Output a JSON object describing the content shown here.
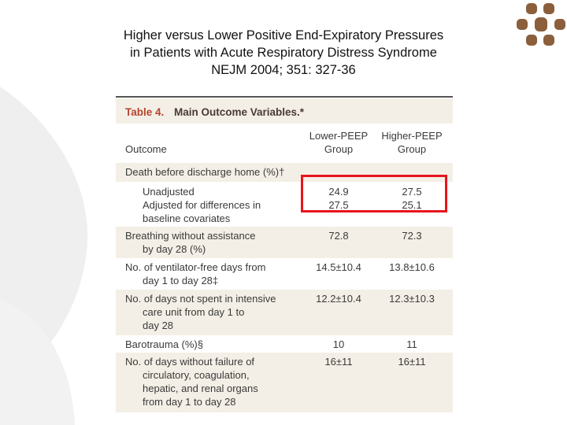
{
  "header": {
    "title_lines": [
      "Higher versus Lower Positive End-Expiratory Pressures",
      "in Patients with Acute Respiratory Distress Syndrome",
      "NEJM 2004; 351: 327-36"
    ]
  },
  "table": {
    "caption_label": "Table 4.",
    "caption_text": "Main Outcome Variables.*",
    "columns": [
      "Outcome",
      [
        "Lower-PEEP",
        "Group"
      ],
      [
        "Higher-PEEP",
        "Group"
      ]
    ],
    "rows": [
      {
        "outcome": [
          "Death before discharge home (%)†"
        ]
      },
      {
        "outcome": [
          "Unadjusted"
        ],
        "lower": "24.9",
        "higher": "27.5"
      },
      {
        "outcome": [
          "Adjusted for differences in",
          "baseline covariates"
        ],
        "lower": "27.5",
        "higher": "25.1"
      },
      {
        "outcome": [
          "Breathing without assistance",
          "by day 28 (%)"
        ],
        "lower": "72.8",
        "higher": "72.3"
      },
      {
        "outcome": [
          "No. of ventilator-free days from",
          "day 1 to day 28‡"
        ],
        "lower": "14.5±10.4",
        "higher": "13.8±10.6"
      },
      {
        "outcome": [
          "No. of days not spent in intensive",
          "care unit from day 1 to",
          "day 28"
        ],
        "lower": "12.2±10.4",
        "higher": "12.3±10.3"
      },
      {
        "outcome": [
          "Barotrauma (%)§"
        ],
        "lower": "10",
        "higher": "11"
      },
      {
        "outcome": [
          "No. of days without failure of",
          "circulatory, coagulation,",
          "hepatic, and renal organs",
          "from day 1 to day 28"
        ],
        "lower": "16±11",
        "higher": "16±11"
      }
    ]
  }
}
